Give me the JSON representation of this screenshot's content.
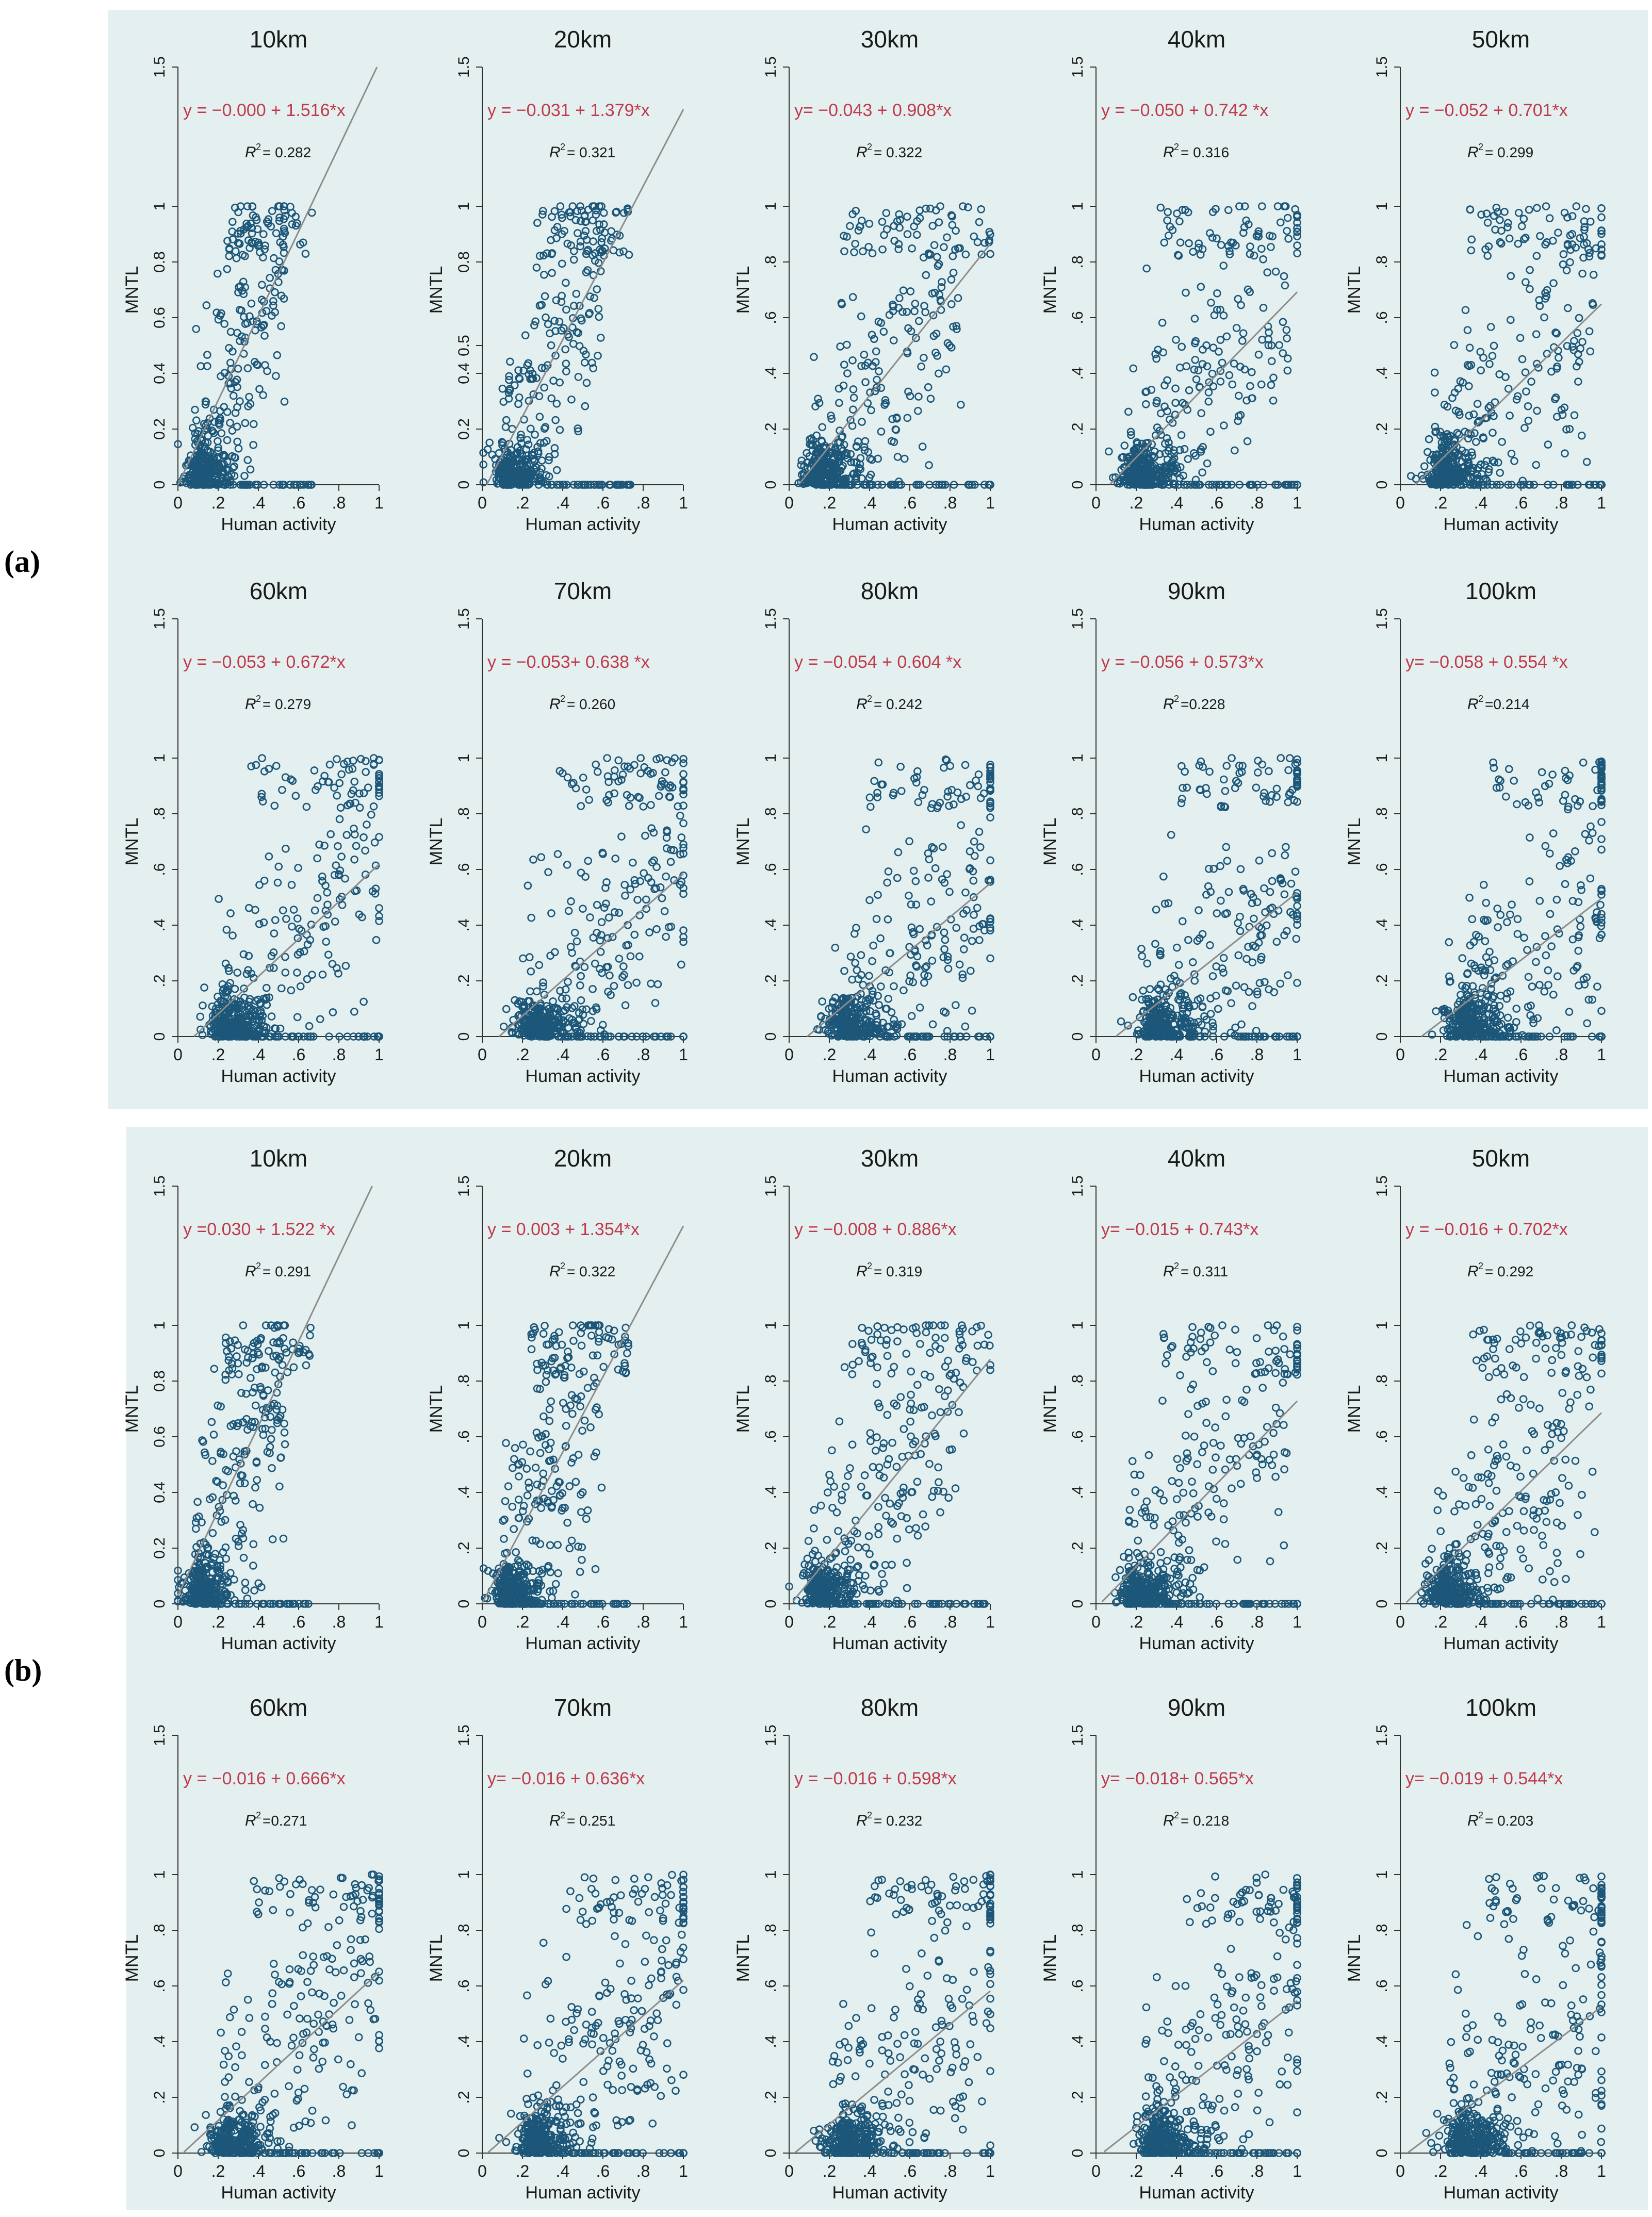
{
  "figure": {
    "panel_labels": [
      "(a)",
      "(b)"
    ],
    "colors": {
      "background": "#e4efef",
      "point": "#1c5678",
      "fit_line": "#8c8c8c",
      "equation": "#c0394b",
      "text": "#1a1a1a"
    }
  },
  "chart_data": [
    {
      "panel": "(a)",
      "type": "scatter",
      "title": "10km",
      "xlabel": "Human activity",
      "ylabel": "MNTL",
      "xlim": [
        0,
        1
      ],
      "ylim": [
        0,
        1.5
      ],
      "xticks": [
        "0",
        ".2",
        ".4",
        ".6",
        ".8",
        "1"
      ],
      "yticks": [
        "0",
        "0.2",
        "0.4",
        "0.6",
        "0.8",
        "1",
        "1.5"
      ],
      "equation": "y = −0.000 + 1.516*x",
      "r2_label": "R",
      "r2_value": "= 0.282",
      "intercept": 0.0,
      "slope": 1.516,
      "fit_range": [
        0,
        1.0
      ],
      "cluster": 0.12,
      "spread": 0.45
    },
    {
      "panel": "(a)",
      "type": "scatter",
      "title": "20km",
      "xlabel": "Human activity",
      "ylabel": "MNTL",
      "xlim": [
        0,
        1
      ],
      "ylim": [
        0,
        1.5
      ],
      "xticks": [
        "0",
        ".2",
        ".4",
        ".6",
        ".8",
        "1"
      ],
      "yticks": [
        "0",
        "0.2",
        "0.4",
        "0.5",
        "0.8",
        "1",
        "1.5"
      ],
      "equation": "y = −0.031 + 1.379*x",
      "r2_label": "R",
      "r2_value": "= 0.321",
      "intercept": -0.031,
      "slope": 1.379,
      "fit_range": [
        0.02,
        1.0
      ],
      "cluster": 0.14,
      "spread": 0.5
    },
    {
      "panel": "(a)",
      "type": "scatter",
      "title": "30km",
      "xlabel": "Human activity",
      "ylabel": "MNTL",
      "xlim": [
        0,
        1
      ],
      "ylim": [
        0,
        1.5
      ],
      "xticks": [
        "0",
        ".2",
        ".4",
        ".6",
        ".8",
        "1"
      ],
      "yticks": [
        "0",
        ".2",
        ".4",
        ".6",
        ".8",
        "1",
        "1.5"
      ],
      "equation": "y= −0.043 + 0.908*x",
      "r2_label": "R",
      "r2_value": "= 0.322",
      "intercept": -0.043,
      "slope": 0.908,
      "fit_range": [
        0.05,
        1.0
      ],
      "cluster": 0.17,
      "spread": 0.75
    },
    {
      "panel": "(a)",
      "type": "scatter",
      "title": "40km",
      "xlabel": "Human activity",
      "ylabel": "MNTL",
      "xlim": [
        0,
        1
      ],
      "ylim": [
        0,
        1.5
      ],
      "xticks": [
        "0",
        ".2",
        ".4",
        ".6",
        ".8",
        "1"
      ],
      "yticks": [
        "0",
        ".2",
        ".4",
        ".6",
        ".8",
        "1",
        "1.5"
      ],
      "equation": "y = −0.050 + 0.742 *x",
      "r2_label": "R",
      "r2_value": "= 0.316",
      "intercept": -0.05,
      "slope": 0.742,
      "fit_range": [
        0.07,
        1.0
      ],
      "cluster": 0.22,
      "spread": 0.8
    },
    {
      "panel": "(a)",
      "type": "scatter",
      "title": "50km",
      "xlabel": "Human activity",
      "ylabel": "MNTL",
      "xlim": [
        0,
        1
      ],
      "ylim": [
        0,
        1.5
      ],
      "xticks": [
        "0",
        ".2",
        ".4",
        ".6",
        ".8",
        "1"
      ],
      "yticks": [
        "0",
        ".2",
        ".4",
        ".6",
        ".8",
        "1",
        "1.5"
      ],
      "equation": "y = −0.052 + 0.701*x",
      "r2_label": "R",
      "r2_value": "= 0.299",
      "intercept": -0.052,
      "slope": 0.701,
      "fit_range": [
        0.07,
        1.0
      ],
      "cluster": 0.24,
      "spread": 0.8
    },
    {
      "panel": "(a)",
      "type": "scatter",
      "title": "60km",
      "xlabel": "Human activity",
      "ylabel": "MNTL",
      "xlim": [
        0,
        1
      ],
      "ylim": [
        0,
        1.5
      ],
      "xticks": [
        "0",
        ".2",
        ".4",
        ".6",
        ".8",
        "1"
      ],
      "yticks": [
        "0",
        ".2",
        ".4",
        ".6",
        ".8",
        "1",
        "1.5"
      ],
      "equation": "y = −0.053 + 0.672*x",
      "r2_label": "R",
      "r2_value": "= 0.279",
      "intercept": -0.053,
      "slope": 0.672,
      "fit_range": [
        0.08,
        1.0
      ],
      "cluster": 0.26,
      "spread": 0.85
    },
    {
      "panel": "(a)",
      "type": "scatter",
      "title": "70km",
      "xlabel": "Human activity",
      "ylabel": "MNTL",
      "xlim": [
        0,
        1
      ],
      "ylim": [
        0,
        1.5
      ],
      "xticks": [
        "0",
        ".2",
        ".4",
        ".6",
        ".8",
        "1"
      ],
      "yticks": [
        "0",
        ".2",
        ".4",
        ".6",
        ".8",
        "1",
        "1.5"
      ],
      "equation": "y = −0.053+ 0.638 *x",
      "r2_label": "R",
      "r2_value": "= 0.260",
      "intercept": -0.053,
      "slope": 0.638,
      "fit_range": [
        0.08,
        1.0
      ],
      "cluster": 0.28,
      "spread": 0.85
    },
    {
      "panel": "(a)",
      "type": "scatter",
      "title": "80km",
      "xlabel": "Human activity",
      "ylabel": "MNTL",
      "xlim": [
        0,
        1
      ],
      "ylim": [
        0,
        1.5
      ],
      "xticks": [
        "0",
        ".2",
        ".4",
        ".6",
        ".8",
        "1"
      ],
      "yticks": [
        "0",
        ".2",
        ".4",
        ".6",
        ".8",
        "1",
        "1.5"
      ],
      "equation": "y = −0.054 + 0.604 *x",
      "r2_label": "R",
      "r2_value": "= 0.242",
      "intercept": -0.054,
      "slope": 0.604,
      "fit_range": [
        0.09,
        1.0
      ],
      "cluster": 0.3,
      "spread": 0.85
    },
    {
      "panel": "(a)",
      "type": "scatter",
      "title": "90km",
      "xlabel": "Human activity",
      "ylabel": "MNTL",
      "xlim": [
        0,
        1
      ],
      "ylim": [
        0,
        1.5
      ],
      "xticks": [
        "0",
        ".2",
        ".4",
        ".6",
        ".8",
        "1"
      ],
      "yticks": [
        "0",
        ".2",
        ".4",
        ".6",
        ".8",
        "1",
        "1.5"
      ],
      "equation": "y = −0.056 + 0.573*x",
      "r2_label": "R",
      "r2_value": "=0.228",
      "intercept": -0.056,
      "slope": 0.573,
      "fit_range": [
        0.1,
        1.0
      ],
      "cluster": 0.32,
      "spread": 0.85
    },
    {
      "panel": "(a)",
      "type": "scatter",
      "title": "100km",
      "xlabel": "Human activity",
      "ylabel": "MNTL",
      "xlim": [
        0,
        1
      ],
      "ylim": [
        0,
        1.5
      ],
      "xticks": [
        "0",
        ".2",
        ".4",
        ".6",
        ".8",
        "1"
      ],
      "yticks": [
        "0",
        ".2",
        ".4",
        ".6",
        ".8",
        "1",
        "1.5"
      ],
      "equation": "y= −0.058 + 0.554 *x",
      "r2_label": "R",
      "r2_value": "=0.214",
      "intercept": -0.058,
      "slope": 0.554,
      "fit_range": [
        0.1,
        1.0
      ],
      "cluster": 0.34,
      "spread": 0.85
    },
    {
      "panel": "(b)",
      "type": "scatter",
      "title": "10km",
      "xlabel": "Human activity",
      "ylabel": "MNTL",
      "xlim": [
        0,
        1
      ],
      "ylim": [
        0,
        1.5
      ],
      "xticks": [
        "0",
        ".2",
        ".4",
        ".6",
        ".8",
        "1"
      ],
      "yticks": [
        "0",
        "0.2",
        "0.4",
        "0.6",
        "0.8",
        "1",
        "1.5"
      ],
      "equation": "y =0.030 + 1.522 *x",
      "r2_label": "R",
      "r2_value": "= 0.291",
      "intercept": 0.03,
      "slope": 1.522,
      "fit_range": [
        0,
        1.0
      ],
      "cluster": 0.12,
      "spread": 0.45
    },
    {
      "panel": "(b)",
      "type": "scatter",
      "title": "20km",
      "xlabel": "Human activity",
      "ylabel": "MNTL",
      "xlim": [
        0,
        1
      ],
      "ylim": [
        0,
        1.5
      ],
      "xticks": [
        "0",
        ".2",
        ".4",
        ".6",
        ".8",
        "1"
      ],
      "yticks": [
        "0",
        ".2",
        ".4",
        ".6",
        ".8",
        "1",
        "1.5"
      ],
      "equation": "y = 0.003 + 1.354*x",
      "r2_label": "R",
      "r2_value": "= 0.322",
      "intercept": 0.003,
      "slope": 1.354,
      "fit_range": [
        0,
        1.0
      ],
      "cluster": 0.14,
      "spread": 0.5
    },
    {
      "panel": "(b)",
      "type": "scatter",
      "title": "30km",
      "xlabel": "Human activity",
      "ylabel": "MNTL",
      "xlim": [
        0,
        1
      ],
      "ylim": [
        0,
        1.5
      ],
      "xticks": [
        "0",
        ".2",
        ".4",
        ".6",
        ".8",
        "1"
      ],
      "yticks": [
        "0",
        ".2",
        ".4",
        ".6",
        ".8",
        "1",
        "1.5"
      ],
      "equation": "y = −0.008 + 0.886*x",
      "r2_label": "R",
      "r2_value": "= 0.319",
      "intercept": -0.008,
      "slope": 0.886,
      "fit_range": [
        0.02,
        1.0
      ],
      "cluster": 0.17,
      "spread": 0.75
    },
    {
      "panel": "(b)",
      "type": "scatter",
      "title": "40km",
      "xlabel": "Human activity",
      "ylabel": "MNTL",
      "xlim": [
        0,
        1
      ],
      "ylim": [
        0,
        1.5
      ],
      "xticks": [
        "0",
        ".2",
        ".4",
        ".6",
        ".8",
        "1"
      ],
      "yticks": [
        "0",
        ".2",
        ".4",
        ".6",
        ".8",
        "1",
        "1.5"
      ],
      "equation": "y= −0.015 + 0.743*x",
      "r2_label": "R",
      "r2_value": "= 0.311",
      "intercept": -0.015,
      "slope": 0.743,
      "fit_range": [
        0.03,
        1.0
      ],
      "cluster": 0.22,
      "spread": 0.8
    },
    {
      "panel": "(b)",
      "type": "scatter",
      "title": "50km",
      "xlabel": "Human activity",
      "ylabel": "MNTL",
      "xlim": [
        0,
        1
      ],
      "ylim": [
        0,
        1.5
      ],
      "xticks": [
        "0",
        ".2",
        ".4",
        ".6",
        ".8",
        "1"
      ],
      "yticks": [
        "0",
        ".2",
        ".4",
        ".6",
        ".8",
        "1",
        "1.5"
      ],
      "equation": "y = −0.016 + 0.702*x",
      "r2_label": "R",
      "r2_value": "= 0.292",
      "intercept": -0.016,
      "slope": 0.702,
      "fit_range": [
        0.03,
        1.0
      ],
      "cluster": 0.24,
      "spread": 0.8
    },
    {
      "panel": "(b)",
      "type": "scatter",
      "title": "60km",
      "xlabel": "Human activity",
      "ylabel": "MNTL",
      "xlim": [
        0,
        1
      ],
      "ylim": [
        0,
        1.5
      ],
      "xticks": [
        "0",
        ".2",
        ".4",
        ".6",
        ".8",
        "1"
      ],
      "yticks": [
        "0",
        ".2",
        ".4",
        ".6",
        ".8",
        "1",
        "1.5"
      ],
      "equation": "y = −0.016 + 0.666*x",
      "r2_label": "R",
      "r2_value": "=0.271",
      "intercept": -0.016,
      "slope": 0.666,
      "fit_range": [
        0.03,
        1.0
      ],
      "cluster": 0.26,
      "spread": 0.85
    },
    {
      "panel": "(b)",
      "type": "scatter",
      "title": "70km",
      "xlabel": "Human activity",
      "ylabel": "MNTL",
      "xlim": [
        0,
        1
      ],
      "ylim": [
        0,
        1.5
      ],
      "xticks": [
        "0",
        ".2",
        ".4",
        ".6",
        ".8",
        "1"
      ],
      "yticks": [
        "0",
        ".2",
        ".4",
        ".6",
        ".8",
        "1",
        "1.5"
      ],
      "equation": "y= −0.016 + 0.636*x",
      "r2_label": "R",
      "r2_value": "= 0.251",
      "intercept": -0.016,
      "slope": 0.636,
      "fit_range": [
        0.03,
        1.0
      ],
      "cluster": 0.28,
      "spread": 0.85
    },
    {
      "panel": "(b)",
      "type": "scatter",
      "title": "80km",
      "xlabel": "Human activity",
      "ylabel": "MNTL",
      "xlim": [
        0,
        1
      ],
      "ylim": [
        0,
        1.5
      ],
      "xticks": [
        "0",
        ".2",
        ".4",
        ".6",
        ".8",
        "1"
      ],
      "yticks": [
        "0",
        ".2",
        ".4",
        ".6",
        ".8",
        "1",
        "1.5"
      ],
      "equation": "y = −0.016 + 0.598*x",
      "r2_label": "R",
      "r2_value": "= 0.232",
      "intercept": -0.016,
      "slope": 0.598,
      "fit_range": [
        0.03,
        1.0
      ],
      "cluster": 0.3,
      "spread": 0.85
    },
    {
      "panel": "(b)",
      "type": "scatter",
      "title": "90km",
      "xlabel": "Human activity",
      "ylabel": "MNTL",
      "xlim": [
        0,
        1
      ],
      "ylim": [
        0,
        1.5
      ],
      "xticks": [
        "0",
        ".2",
        ".4",
        ".6",
        ".8",
        "1"
      ],
      "yticks": [
        "0",
        ".2",
        ".4",
        ".6",
        ".8",
        "1",
        "1.5"
      ],
      "equation": "y= −0.018+ 0.565*x",
      "r2_label": "R",
      "r2_value": "= 0.218",
      "intercept": -0.018,
      "slope": 0.565,
      "fit_range": [
        0.04,
        1.0
      ],
      "cluster": 0.32,
      "spread": 0.85
    },
    {
      "panel": "(b)",
      "type": "scatter",
      "title": "100km",
      "xlabel": "Human activity",
      "ylabel": "MNTL",
      "xlim": [
        0,
        1
      ],
      "ylim": [
        0,
        1.5
      ],
      "xticks": [
        "0",
        ".2",
        ".4",
        ".6",
        ".8",
        "1"
      ],
      "yticks": [
        "0",
        ".2",
        ".4",
        ".6",
        ".8",
        "1",
        "1.5"
      ],
      "equation": "y= −0.019 + 0.544*x",
      "r2_label": "R",
      "r2_value": "= 0.203",
      "intercept": -0.019,
      "slope": 0.544,
      "fit_range": [
        0.04,
        1.0
      ],
      "cluster": 0.34,
      "spread": 0.85
    }
  ]
}
